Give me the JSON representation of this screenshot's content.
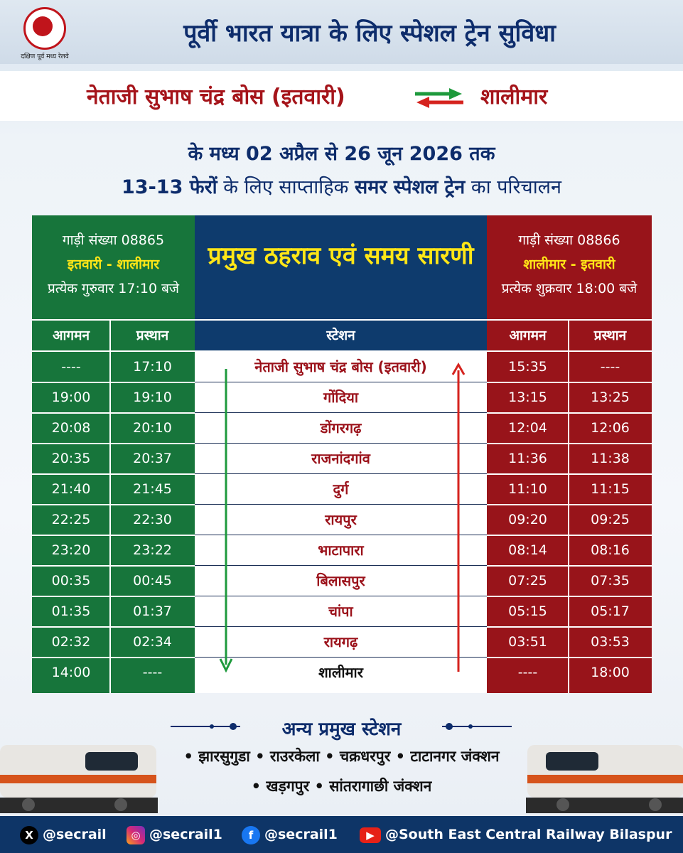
{
  "logo": {
    "caption": "दक्षिण पूर्व मध्य रेलवे"
  },
  "title": "पूर्वी भारत यात्रा के लिए स्पेशल ट्रेन सुविधा",
  "route": {
    "from": "नेताजी सुभाष चंद्र बोस (इतवारी)",
    "to": "शालीमार"
  },
  "subtitle": {
    "line1": "के मध्य 02 अप्रैल से 26 जून 2026 तक",
    "line2_a": "13-13 फेरों",
    "line2_b": " के लिए साप्ताहिक ",
    "line2_c": "समर स्पेशल ट्रेन",
    "line2_d": " का परिचालन"
  },
  "table": {
    "center_title": "प्रमुख ठहराव एवं समय सारणी",
    "up_train": {
      "number": "गाड़ी संख्या 08865",
      "route": "इतवारी - शालीमार",
      "schedule": "प्रत्येक गुरुवार 17:10 बजे"
    },
    "down_train": {
      "number": "गाड़ी संख्या 08866",
      "route": "शालीमार - इतवारी",
      "schedule": "प्रत्येक शुक्रवार 18:00 बजे"
    },
    "headers": {
      "arrival": "आगमन",
      "departure": "प्रस्थान",
      "station": "स्टेशन"
    },
    "rows": [
      {
        "up_arr": "----",
        "up_dep": "17:10",
        "station": "नेताजी सुभाष चंद्र बोस (इतवारी)",
        "down_arr": "15:35",
        "down_dep": "----"
      },
      {
        "up_arr": "19:00",
        "up_dep": "19:10",
        "station": "गोंदिया",
        "down_arr": "13:15",
        "down_dep": "13:25"
      },
      {
        "up_arr": "20:08",
        "up_dep": "20:10",
        "station": "डोंगरगढ़",
        "down_arr": "12:04",
        "down_dep": "12:06"
      },
      {
        "up_arr": "20:35",
        "up_dep": "20:37",
        "station": "राजनांदगांव",
        "down_arr": "11:36",
        "down_dep": "11:38"
      },
      {
        "up_arr": "21:40",
        "up_dep": "21:45",
        "station": "दुर्ग",
        "down_arr": "11:10",
        "down_dep": "11:15"
      },
      {
        "up_arr": "22:25",
        "up_dep": "22:30",
        "station": "रायपुर",
        "down_arr": "09:20",
        "down_dep": "09:25"
      },
      {
        "up_arr": "23:20",
        "up_dep": "23:22",
        "station": "भाटापारा",
        "down_arr": "08:14",
        "down_dep": "08:16"
      },
      {
        "up_arr": "00:35",
        "up_dep": "00:45",
        "station": "बिलासपुर",
        "down_arr": "07:25",
        "down_dep": "07:35"
      },
      {
        "up_arr": "01:35",
        "up_dep": "01:37",
        "station": "चांपा",
        "down_arr": "05:15",
        "down_dep": "05:17"
      },
      {
        "up_arr": "02:32",
        "up_dep": "02:34",
        "station": "रायगढ़",
        "down_arr": "03:51",
        "down_dep": "03:53"
      },
      {
        "up_arr": "14:00",
        "up_dep": "----",
        "station": "शालीमार",
        "down_arr": "----",
        "down_dep": "18:00"
      }
    ]
  },
  "other_stations": {
    "heading": "अन्य प्रमुख स्टेशन",
    "line1": "• झारसुगुडा • राउरकेला • चक्रधरपुर • टाटानगर जंक्शन",
    "line2": "• खड़गपुर • सांतरागाछी जंक्शन"
  },
  "footer": {
    "x": "@secrail",
    "instagram": "@secrail1",
    "facebook": "@secrail1",
    "youtube": "@South East Central Railway Bilaspur"
  },
  "colors": {
    "up": "#17753b",
    "down": "#98141a",
    "navy": "#0e3b6d",
    "yellow": "#ffe617"
  }
}
